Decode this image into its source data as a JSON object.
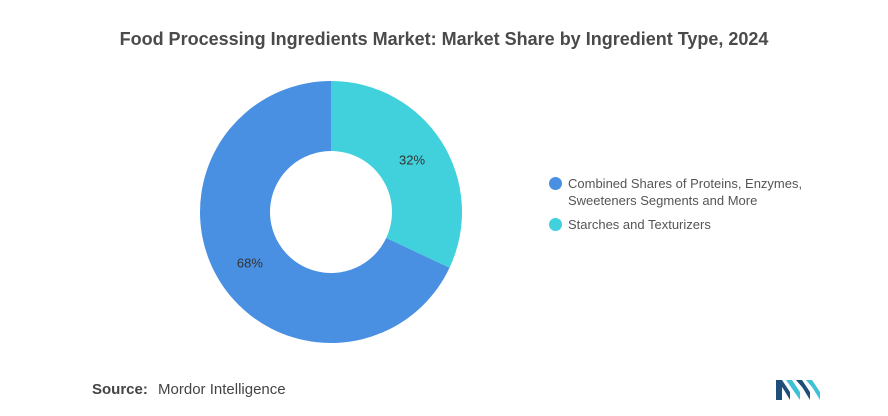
{
  "title": "Food Processing Ingredients Market: Market Share by Ingredient Type, 2024",
  "source": {
    "label": "Source:",
    "value": "Mordor Intelligence"
  },
  "logo": {
    "icon": "mordor-intelligence-logo-icon",
    "colors": [
      "#1f4e79",
      "#3ec1d3"
    ]
  },
  "chart_data": {
    "type": "pie",
    "style": "donut",
    "legend_position": "right",
    "slices": [
      {
        "name": "Starches and Texturizers",
        "value": 32,
        "label": "32%",
        "color": "#41d1dc"
      },
      {
        "name": "Combined Shares of Proteins, Enzymes, Sweeteners Segments and More",
        "value": 68,
        "label": "68%",
        "color": "#4a90e2"
      }
    ],
    "legend": [
      {
        "text": "Combined Shares of Proteins, Enzymes, Sweeteners Segments and More",
        "color": "#4a90e2"
      },
      {
        "text": "Starches and Texturizers",
        "color": "#41d1dc"
      }
    ]
  }
}
